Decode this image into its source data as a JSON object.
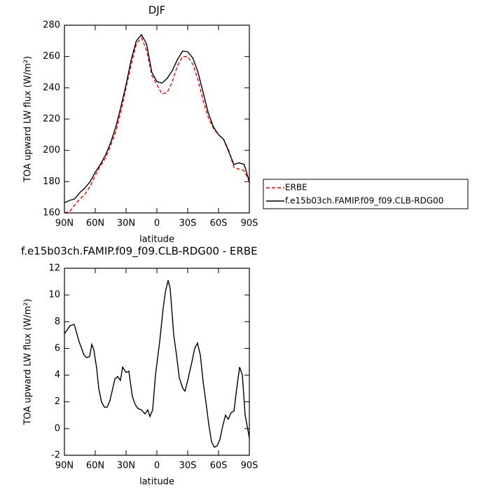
{
  "chart_data": [
    {
      "type": "line",
      "title": "DJF",
      "xlabel": "latitude",
      "ylabel": "TOA upward LW flux (W/m²)",
      "x": [
        90,
        85,
        80,
        75,
        70,
        65,
        60,
        55,
        50,
        45,
        40,
        35,
        30,
        25,
        20,
        15,
        10,
        5,
        0,
        -5,
        -10,
        -15,
        -20,
        -25,
        -30,
        -35,
        -40,
        -45,
        -50,
        -55,
        -60,
        -65,
        -70,
        -75,
        -80,
        -85,
        -90
      ],
      "series": [
        {
          "name": "ERBE",
          "color": "#ff0000",
          "line_style": "dashed",
          "values": [
            160,
            161,
            165,
            169,
            172,
            177,
            184,
            190,
            195,
            203,
            212,
            225,
            240,
            255,
            268,
            272,
            264,
            248,
            242,
            236,
            237,
            244,
            254,
            260,
            260,
            255,
            245,
            232,
            221,
            214,
            210,
            207,
            200,
            189,
            188,
            187,
            180
          ]
        },
        {
          "name": "f.e15b03ch.FAMIP.f09_f09.CLB-RDG00",
          "color": "#000000",
          "line_style": "solid",
          "values": [
            166.5,
            168,
            169,
            173,
            176,
            180,
            186,
            191,
            197,
            205,
            215,
            228,
            242,
            258,
            270,
            274,
            268,
            250,
            244,
            243,
            246,
            251,
            258,
            263.5,
            263,
            259,
            250,
            237,
            224,
            215,
            210,
            207,
            199,
            191,
            192,
            191,
            180
          ]
        }
      ],
      "xlim": [
        90,
        -90
      ],
      "xticks": [
        {
          "value": 90,
          "label": "90N"
        },
        {
          "value": 60,
          "label": "60N"
        },
        {
          "value": 30,
          "label": "30N"
        },
        0,
        {
          "value": -30,
          "label": "30S"
        },
        {
          "value": -60,
          "label": "60S"
        },
        {
          "value": -90,
          "label": "90S"
        }
      ],
      "ylim": [
        160,
        280
      ],
      "yticks": [
        160,
        180,
        200,
        220,
        240,
        260,
        280
      ],
      "legend": "right"
    },
    {
      "type": "line",
      "title": "f.e15b03ch.FAMIP.f09_f09.CLB-RDG00 - ERBE",
      "xlabel": "latitude",
      "ylabel": "TOA upward LW flux (W/m²)",
      "x": [
        90,
        84.5,
        80.5,
        75.7,
        70.9,
        68.2,
        65.5,
        63.4,
        61.4,
        58.6,
        56.6,
        53.9,
        51.1,
        48.4,
        45.7,
        40.9,
        38.2,
        35.5,
        33.4,
        30.0,
        27.3,
        23.9,
        21.1,
        18.4,
        15.0,
        11.6,
        8.9,
        6.8,
        4.1,
        1.4,
        -2.7,
        -6.1,
        -8.2,
        -10.9,
        -12.9,
        -16.4,
        -19.1,
        -21.8,
        -25.2,
        -27.3,
        -30.0,
        -34.1,
        -36.8,
        -39.5,
        -42.3,
        -45.0,
        -47.7,
        -50.5,
        -53.2,
        -55.9,
        -58.6,
        -61.4,
        -64.1,
        -66.8,
        -69.5,
        -72.3,
        -75.0,
        -77.7,
        -80.5,
        -83.2,
        -85.9,
        -90
      ],
      "series": [
        {
          "color": "#000000",
          "line_style": "solid",
          "values": [
            7.1,
            7.7,
            7.8,
            6.5,
            5.5,
            5.3,
            5.4,
            6.3,
            5.9,
            4.5,
            3.0,
            2.0,
            1.6,
            1.6,
            2.1,
            3.7,
            3.9,
            3.6,
            4.6,
            4.2,
            4.3,
            2.4,
            1.8,
            1.5,
            1.4,
            1.1,
            1.4,
            0.9,
            1.4,
            4.0,
            6.5,
            9.0,
            10.2,
            11.1,
            10.5,
            7.0,
            5.5,
            3.8,
            3.0,
            2.8,
            3.6,
            5.0,
            6.0,
            6.4,
            5.5,
            3.5,
            2.0,
            0.3,
            -1.0,
            -1.4,
            -1.3,
            -0.8,
            0.2,
            1.0,
            0.7,
            1.2,
            1.3,
            3.0,
            4.6,
            4.0,
            1.0,
            -0.7
          ]
        }
      ],
      "xlim": [
        90,
        -90
      ],
      "xticks": [
        {
          "value": 90,
          "label": "90N"
        },
        {
          "value": 60,
          "label": "60N"
        },
        {
          "value": 30,
          "label": "30N"
        },
        0,
        {
          "value": -30,
          "label": "30S"
        },
        {
          "value": -60,
          "label": "60S"
        },
        {
          "value": -90,
          "label": "90S"
        }
      ],
      "ylim": [
        -2,
        12
      ],
      "yticks": [
        -2,
        0,
        2,
        4,
        6,
        8,
        10,
        12
      ]
    }
  ]
}
